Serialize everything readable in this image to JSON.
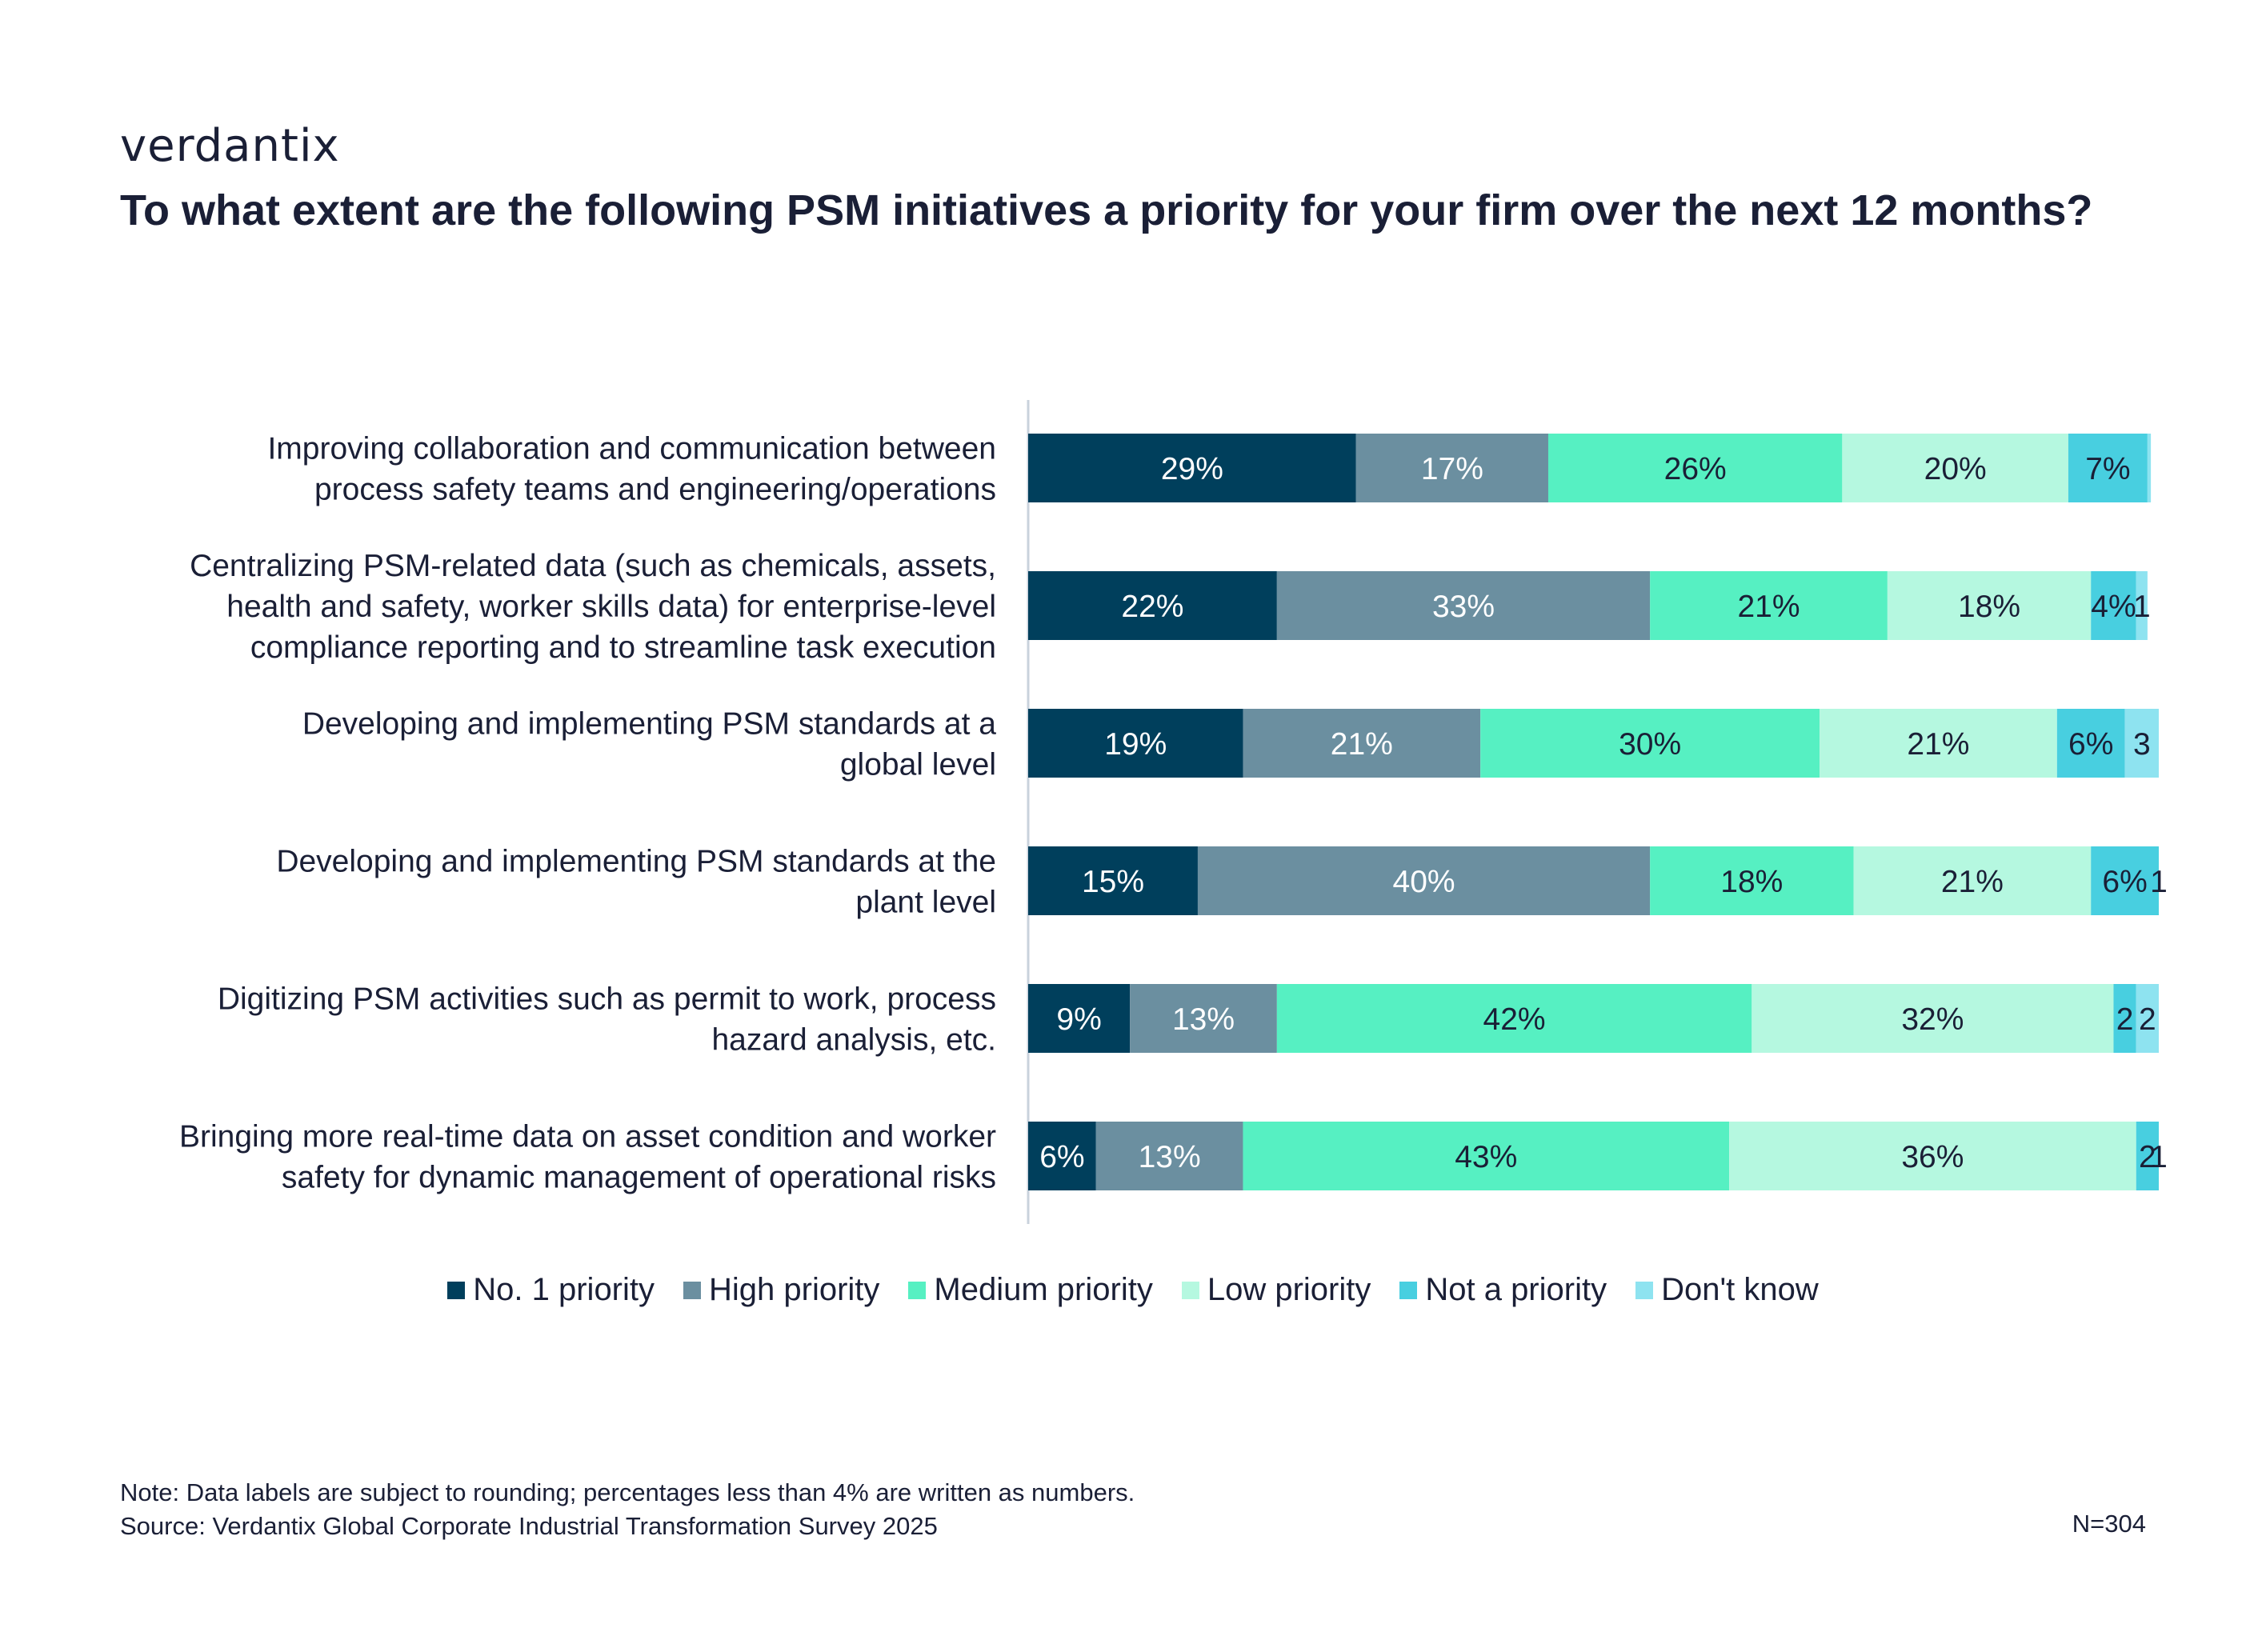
{
  "brand": {
    "logo_text": "verdantix"
  },
  "title": "To what extent are the following PSM initiatives a priority for your firm over the next 12 months?",
  "footer": {
    "note": "Note: Data labels are subject to rounding; percentages less than 4% are written as numbers.",
    "source": "Source: Verdantix Global Corporate Industrial Transformation Survey 2025",
    "n_value": "N=304"
  },
  "chart_data": {
    "type": "bar",
    "orientation": "horizontal",
    "stacked": true,
    "xlim": [
      0,
      100
    ],
    "categories": [
      [
        "Improving collaboration and communication between",
        "process safety teams and engineering/operations"
      ],
      [
        "Centralizing PSM-related data (such as chemicals, assets,",
        "health and safety, worker skills data) for enterprise-level",
        "compliance reporting and to streamline task execution"
      ],
      [
        "Developing and implementing PSM standards at a",
        "global level"
      ],
      [
        "Developing and implementing PSM standards at the",
        "plant level"
      ],
      [
        "Digitizing PSM activities such as permit to work, process",
        "hazard analysis, etc."
      ],
      [
        "Bringing more real-time data on asset condition and worker",
        "safety for dynamic management of operational risks"
      ]
    ],
    "series": [
      {
        "name": "No. 1 priority",
        "color": "#003f5c",
        "label_color": "#ffffff",
        "values": [
          29,
          22,
          19,
          15,
          9,
          6
        ],
        "labels": [
          "29%",
          "22%",
          "19%",
          "15%",
          "9%",
          "6%"
        ]
      },
      {
        "name": "High priority",
        "color": "#6b8fa0",
        "label_color": "#ffffff",
        "values": [
          17,
          33,
          21,
          40,
          13,
          13
        ],
        "labels": [
          "17%",
          "33%",
          "21%",
          "40%",
          "13%",
          "13%"
        ]
      },
      {
        "name": "Medium priority",
        "color": "#56f0c2",
        "label_color": "#1a1f36",
        "values": [
          26,
          21,
          30,
          18,
          42,
          43
        ],
        "labels": [
          "26%",
          "21%",
          "30%",
          "18%",
          "42%",
          "43%"
        ]
      },
      {
        "name": "Low priority",
        "color": "#b5f8e0",
        "label_color": "#1a1f36",
        "values": [
          20,
          18,
          21,
          21,
          32,
          36
        ],
        "labels": [
          "20%",
          "18%",
          "21%",
          "21%",
          "32%",
          "36%"
        ]
      },
      {
        "name": "Not a priority",
        "color": "#48cfe0",
        "label_color": "#1a1f36",
        "values": [
          7,
          4,
          6,
          6,
          2,
          2
        ],
        "labels": [
          "7%",
          "4%",
          "6%",
          "6%",
          "2",
          "2"
        ]
      },
      {
        "name": "Don't know",
        "color": "#8ee3f0",
        "label_color": "#1a1f36",
        "values": [
          0.3,
          1,
          3,
          1,
          2,
          1
        ],
        "labels": [
          "",
          "1",
          "3",
          "1",
          "2",
          "1"
        ]
      }
    ],
    "legend_position": "bottom"
  }
}
